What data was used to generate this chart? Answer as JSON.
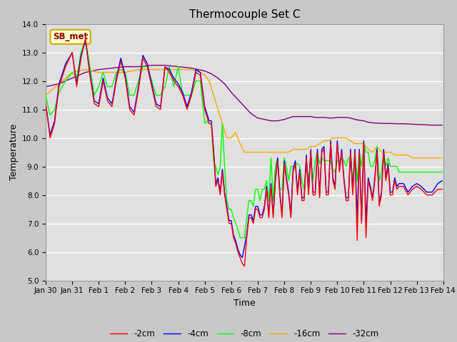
{
  "title": "Thermocouple Set C",
  "xlabel": "Time",
  "ylabel": "Temperature",
  "ylim": [
    5.0,
    14.0
  ],
  "yticks": [
    5.0,
    6.0,
    7.0,
    8.0,
    9.0,
    10.0,
    11.0,
    12.0,
    13.0,
    14.0
  ],
  "series_colors": [
    "red",
    "blue",
    "lime",
    "orange",
    "purple"
  ],
  "series_labels": [
    "-2cm",
    "-4cm",
    "-8cm",
    "-16cm",
    "-32cm"
  ],
  "annotation_text": "SB_met",
  "annotation_color": "#8b0000",
  "annotation_bg": "#ffffcc",
  "annotation_edge": "#ccaa00",
  "fig_facecolor": "#c8c8c8",
  "axes_facecolor": "#e0e0e0",
  "grid_color": "white",
  "title_fontsize": 11,
  "label_fontsize": 9,
  "tick_fontsize": 7.5
}
